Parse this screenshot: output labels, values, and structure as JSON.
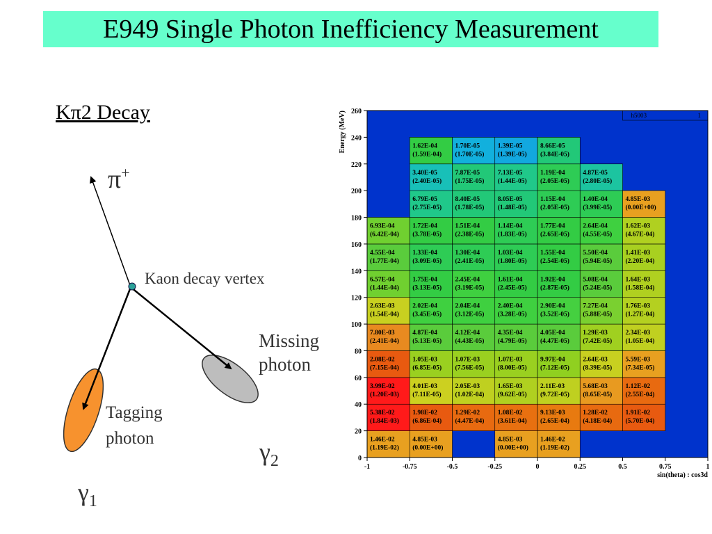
{
  "slide": {
    "title": "E949 Single Photon Inefficiency Measurement",
    "decay_heading": "Kπ2 Decay"
  },
  "diagram": {
    "pion_label": "π",
    "pion_charge": "+",
    "vertex_label": "Kaon decay vertex",
    "missing_label_1": "Missing",
    "missing_label_2": "photon",
    "tagging_label_1": "Tagging",
    "tagging_label_2": "photon",
    "gamma": "γ",
    "gamma1_sub": "1",
    "gamma2_sub": "2",
    "colors": {
      "tagging_photon": "#f7922e",
      "missing_photon": "#bdbdbd",
      "vertex": "#2aa198"
    }
  },
  "chart_data": {
    "type": "heatmap",
    "xlabel": "sin(theta) : cos3d",
    "ylabel": "Energy (MeV)",
    "xlim": [
      -1,
      1
    ],
    "ylim": [
      0,
      260
    ],
    "x_ticks": [
      "-1",
      "-0.75",
      "-0.5",
      "-0.25",
      "0",
      "0.25",
      "0.5",
      "0.75",
      "1"
    ],
    "y_ticks": [
      "0",
      "20",
      "40",
      "60",
      "80",
      "100",
      "120",
      "140",
      "160",
      "180",
      "200",
      "220",
      "240",
      "260"
    ],
    "x_bins": [
      -1,
      -0.75,
      -0.5,
      -0.25,
      0,
      0.25,
      0.5,
      0.75,
      1
    ],
    "y_bins": [
      0,
      20,
      40,
      60,
      80,
      100,
      120,
      140,
      160,
      180,
      200,
      220,
      240,
      260
    ],
    "stats_box": {
      "name": "h5003",
      "entries": "1"
    },
    "colors": {
      "background": "#0033cc",
      "grid": "#000000"
    },
    "cells": [
      {
        "ix": 0,
        "iy": 0,
        "value": "1.46E-02",
        "error": "(1.19E-02)",
        "color": "#e8a020"
      },
      {
        "ix": 1,
        "iy": 0,
        "value": "4.85E-03",
        "error": "(0.00E+00)",
        "color": "#e8a020"
      },
      {
        "ix": 3,
        "iy": 0,
        "value": "4.85E-03",
        "error": "(0.00E+00)",
        "color": "#e8a020"
      },
      {
        "ix": 4,
        "iy": 0,
        "value": "1.46E-02",
        "error": "(1.19E-02)",
        "color": "#e8a020"
      },
      {
        "ix": 0,
        "iy": 1,
        "value": "5.38E-02",
        "error": "(1.84E-03)",
        "color": "#ff1a1a"
      },
      {
        "ix": 1,
        "iy": 1,
        "value": "1.98E-02",
        "error": "(6.86E-04)",
        "color": "#e85a10"
      },
      {
        "ix": 2,
        "iy": 1,
        "value": "1.29E-02",
        "error": "(4.47E-04)",
        "color": "#e86a10"
      },
      {
        "ix": 3,
        "iy": 1,
        "value": "1.08E-02",
        "error": "(3.61E-04)",
        "color": "#e87010"
      },
      {
        "ix": 4,
        "iy": 1,
        "value": "9.13E-03",
        "error": "(2.65E-04)",
        "color": "#e87a10"
      },
      {
        "ix": 5,
        "iy": 1,
        "value": "1.28E-02",
        "error": "(4.18E-04)",
        "color": "#e86a10"
      },
      {
        "ix": 6,
        "iy": 1,
        "value": "1.91E-02",
        "error": "(5.70E-04)",
        "color": "#e85a10"
      },
      {
        "ix": 0,
        "iy": 2,
        "value": "3.99E-02",
        "error": "(1.20E-03)",
        "color": "#ff1a1a"
      },
      {
        "ix": 1,
        "iy": 2,
        "value": "4.01E-03",
        "error": "(7.11E-05)",
        "color": "#ccd020"
      },
      {
        "ix": 2,
        "iy": 2,
        "value": "2.05E-03",
        "error": "(1.02E-04)",
        "color": "#bfd020"
      },
      {
        "ix": 3,
        "iy": 2,
        "value": "1.65E-03",
        "error": "(9.62E-05)",
        "color": "#b0d020"
      },
      {
        "ix": 4,
        "iy": 2,
        "value": "2.11E-03",
        "error": "(9.72E-05)",
        "color": "#bfd020"
      },
      {
        "ix": 5,
        "iy": 2,
        "value": "5.68E-03",
        "error": "(8.65E-05)",
        "color": "#e89a20"
      },
      {
        "ix": 6,
        "iy": 2,
        "value": "1.12E-02",
        "error": "(2.55E-04)",
        "color": "#e86a10"
      },
      {
        "ix": 0,
        "iy": 3,
        "value": "2.08E-02",
        "error": "(7.15E-04)",
        "color": "#e85a10"
      },
      {
        "ix": 1,
        "iy": 3,
        "value": "1.05E-03",
        "error": "(6.85E-05)",
        "color": "#9ad020"
      },
      {
        "ix": 2,
        "iy": 3,
        "value": "1.07E-03",
        "error": "(7.56E-05)",
        "color": "#9ad020"
      },
      {
        "ix": 3,
        "iy": 3,
        "value": "1.07E-03",
        "error": "(8.00E-05)",
        "color": "#9ad020"
      },
      {
        "ix": 4,
        "iy": 3,
        "value": "9.97E-04",
        "error": "(7.12E-05)",
        "color": "#90d020"
      },
      {
        "ix": 5,
        "iy": 3,
        "value": "2.64E-03",
        "error": "(8.39E-05)",
        "color": "#c8d020"
      },
      {
        "ix": 6,
        "iy": 3,
        "value": "5.59E-03",
        "error": "(7.34E-05)",
        "color": "#e8a020"
      },
      {
        "ix": 0,
        "iy": 4,
        "value": "7.80E-03",
        "error": "(2.41E-04)",
        "color": "#e88a20"
      },
      {
        "ix": 1,
        "iy": 4,
        "value": "4.87E-04",
        "error": "(5.13E-05)",
        "color": "#5acc3c"
      },
      {
        "ix": 2,
        "iy": 4,
        "value": "4.12E-04",
        "error": "(4.43E-05)",
        "color": "#5acc3c"
      },
      {
        "ix": 3,
        "iy": 4,
        "value": "4.35E-04",
        "error": "(4.79E-05)",
        "color": "#5acc3c"
      },
      {
        "ix": 4,
        "iy": 4,
        "value": "4.05E-04",
        "error": "(4.47E-05)",
        "color": "#5acc3c"
      },
      {
        "ix": 5,
        "iy": 4,
        "value": "1.29E-03",
        "error": "(7.42E-05)",
        "color": "#a0d020"
      },
      {
        "ix": 6,
        "iy": 4,
        "value": "2.34E-03",
        "error": "(1.05E-04)",
        "color": "#c0d020"
      },
      {
        "ix": 0,
        "iy": 5,
        "value": "2.63E-03",
        "error": "(1.54E-04)",
        "color": "#c8d020"
      },
      {
        "ix": 1,
        "iy": 5,
        "value": "2.02E-04",
        "error": "(3.45E-05)",
        "color": "#3fd040"
      },
      {
        "ix": 2,
        "iy": 5,
        "value": "2.04E-04",
        "error": "(3.12E-05)",
        "color": "#3fd040"
      },
      {
        "ix": 3,
        "iy": 5,
        "value": "2.40E-04",
        "error": "(3.28E-05)",
        "color": "#3fd040"
      },
      {
        "ix": 4,
        "iy": 5,
        "value": "2.90E-04",
        "error": "(3.52E-05)",
        "color": "#45d040"
      },
      {
        "ix": 5,
        "iy": 5,
        "value": "7.27E-04",
        "error": "(5.88E-05)",
        "color": "#7ad030"
      },
      {
        "ix": 6,
        "iy": 5,
        "value": "1.76E-03",
        "error": "(1.27E-04)",
        "color": "#b4d020"
      },
      {
        "ix": 0,
        "iy": 6,
        "value": "6.57E-04",
        "error": "(1.44E-04)",
        "color": "#70d030"
      },
      {
        "ix": 1,
        "iy": 6,
        "value": "1.75E-04",
        "error": "(3.13E-05)",
        "color": "#33cc44"
      },
      {
        "ix": 2,
        "iy": 6,
        "value": "2.45E-04",
        "error": "(3.19E-05)",
        "color": "#3fd040"
      },
      {
        "ix": 3,
        "iy": 6,
        "value": "1.61E-04",
        "error": "(2.45E-05)",
        "color": "#33cc44"
      },
      {
        "ix": 4,
        "iy": 6,
        "value": "1.92E-04",
        "error": "(2.87E-05)",
        "color": "#33cc44"
      },
      {
        "ix": 5,
        "iy": 6,
        "value": "5.08E-04",
        "error": "(5.24E-05)",
        "color": "#5acc3c"
      },
      {
        "ix": 6,
        "iy": 6,
        "value": "1.64E-03",
        "error": "(1.58E-04)",
        "color": "#b0d020"
      },
      {
        "ix": 0,
        "iy": 7,
        "value": "4.55E-04",
        "error": "(1.77E-04)",
        "color": "#5acc3c"
      },
      {
        "ix": 1,
        "iy": 7,
        "value": "1.33E-04",
        "error": "(3.09E-05)",
        "color": "#2ecc55"
      },
      {
        "ix": 2,
        "iy": 7,
        "value": "1.30E-04",
        "error": "(2.41E-05)",
        "color": "#2ecc55"
      },
      {
        "ix": 3,
        "iy": 7,
        "value": "1.03E-04",
        "error": "(1.80E-05)",
        "color": "#2ecc55"
      },
      {
        "ix": 4,
        "iy": 7,
        "value": "1.55E-04",
        "error": "(2.54E-05)",
        "color": "#33cc44"
      },
      {
        "ix": 5,
        "iy": 7,
        "value": "5.50E-04",
        "error": "(5.94E-05)",
        "color": "#5acc3c"
      },
      {
        "ix": 6,
        "iy": 7,
        "value": "1.41E-03",
        "error": "(2.20E-04)",
        "color": "#a8d020"
      },
      {
        "ix": 0,
        "iy": 8,
        "value": "6.93E-04",
        "error": "(6.42E-04)",
        "color": "#70d030"
      },
      {
        "ix": 1,
        "iy": 8,
        "value": "1.72E-04",
        "error": "(3.78E-05)",
        "color": "#33cc44"
      },
      {
        "ix": 2,
        "iy": 8,
        "value": "1.51E-04",
        "error": "(2.38E-05)",
        "color": "#33cc44"
      },
      {
        "ix": 3,
        "iy": 8,
        "value": "1.14E-04",
        "error": "(1.83E-05)",
        "color": "#2ecc55"
      },
      {
        "ix": 4,
        "iy": 8,
        "value": "1.77E-04",
        "error": "(2.65E-05)",
        "color": "#33cc44"
      },
      {
        "ix": 5,
        "iy": 8,
        "value": "2.64E-04",
        "error": "(4.55E-05)",
        "color": "#3fd040"
      },
      {
        "ix": 6,
        "iy": 8,
        "value": "1.62E-03",
        "error": "(4.67E-04)",
        "color": "#b0d020"
      },
      {
        "ix": 1,
        "iy": 9,
        "value": "6.79E-05",
        "error": "(2.75E-05)",
        "color": "#20c88a"
      },
      {
        "ix": 2,
        "iy": 9,
        "value": "8.40E-05",
        "error": "(1.78E-05)",
        "color": "#22c878"
      },
      {
        "ix": 3,
        "iy": 9,
        "value": "8.05E-05",
        "error": "(1.48E-05)",
        "color": "#22c878"
      },
      {
        "ix": 4,
        "iy": 9,
        "value": "1.15E-04",
        "error": "(2.05E-05)",
        "color": "#2ecc55"
      },
      {
        "ix": 5,
        "iy": 9,
        "value": "1.40E-04",
        "error": "(3.99E-05)",
        "color": "#2ecc55"
      },
      {
        "ix": 6,
        "iy": 9,
        "value": "4.85E-03",
        "error": "(0.00E+00)",
        "color": "#e8a020"
      },
      {
        "ix": 1,
        "iy": 10,
        "value": "3.40E-05",
        "error": "(2.40E-05)",
        "color": "#18c0b8"
      },
      {
        "ix": 2,
        "iy": 10,
        "value": "7.87E-05",
        "error": "(1.75E-05)",
        "color": "#22c878"
      },
      {
        "ix": 3,
        "iy": 10,
        "value": "7.13E-05",
        "error": "(1.44E-05)",
        "color": "#20c88a"
      },
      {
        "ix": 4,
        "iy": 10,
        "value": "1.19E-04",
        "error": "(2.05E-05)",
        "color": "#2ecc55"
      },
      {
        "ix": 5,
        "iy": 10,
        "value": "4.87E-05",
        "error": "(2.80E-05)",
        "color": "#1cc4a0"
      },
      {
        "ix": 1,
        "iy": 11,
        "value": "1.62E-04",
        "error": "(1.59E-04)",
        "color": "#33cc44"
      },
      {
        "ix": 2,
        "iy": 11,
        "value": "1.70E-05",
        "error": "(1.70E-05)",
        "color": "#12b0dd"
      },
      {
        "ix": 3,
        "iy": 11,
        "value": "1.39E-05",
        "error": "(1.39E-05)",
        "color": "#12a8e0"
      },
      {
        "ix": 4,
        "iy": 11,
        "value": "8.66E-05",
        "error": "(3.84E-05)",
        "color": "#22c878"
      }
    ]
  }
}
